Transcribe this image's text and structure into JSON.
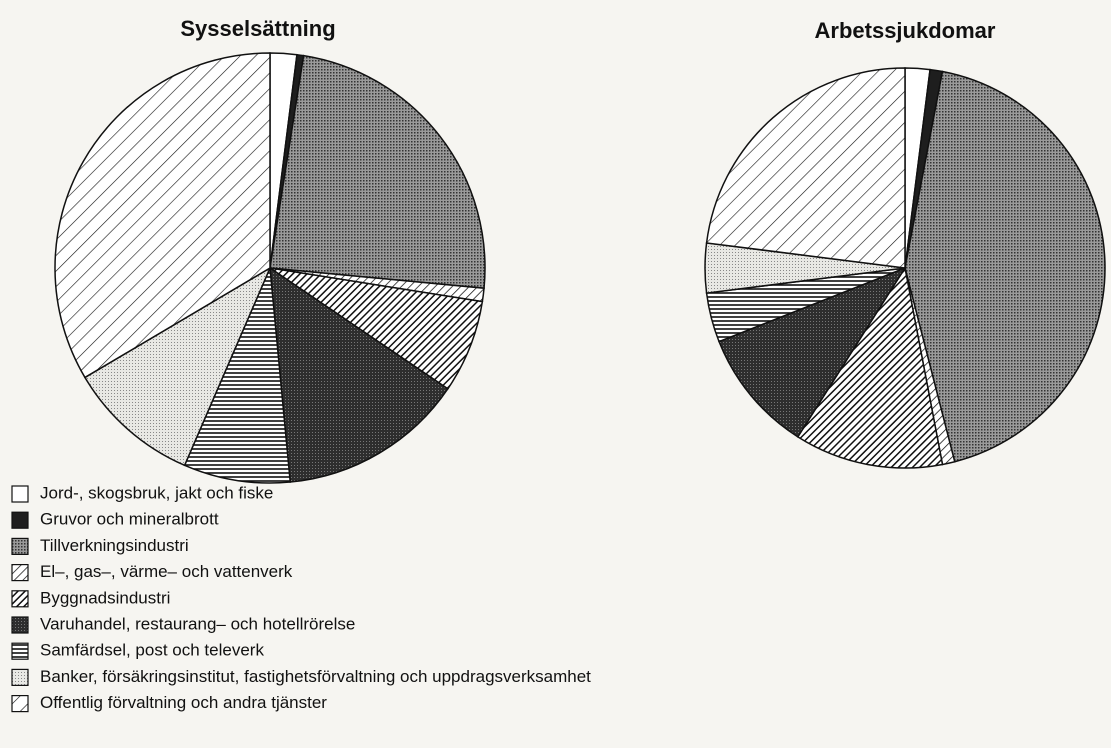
{
  "chart_data": [
    {
      "type": "pie",
      "title": "Sysselsättning",
      "categories": [
        "Jord-, skogsbruk, jakt och fiske",
        "Gruvor och mineralbrott",
        "Tillverkningsindustri",
        "El–, gas–, värme– och vattenverk",
        "Byggnadsindustri",
        "Varuhandel, restaurang– och hotellrörelse",
        "Samfärdsel, post och televerk",
        "Banker, försäkringsinstitut, fastighetsförvaltning och uppdragsverksamhet",
        "Offentlig förvaltning och andra tjänster"
      ],
      "patterns": [
        "white",
        "black",
        "dots",
        "diag",
        "diag-dense",
        "dark",
        "hlines",
        "light-dots",
        "diag-sparse"
      ],
      "values": [
        2,
        0.5,
        24,
        1,
        7,
        14,
        8,
        10,
        33.5
      ]
    },
    {
      "type": "pie",
      "title": "Arbetssjukdomar",
      "values": [
        2,
        1,
        43,
        1,
        12,
        10,
        4,
        4,
        23
      ]
    }
  ]
}
